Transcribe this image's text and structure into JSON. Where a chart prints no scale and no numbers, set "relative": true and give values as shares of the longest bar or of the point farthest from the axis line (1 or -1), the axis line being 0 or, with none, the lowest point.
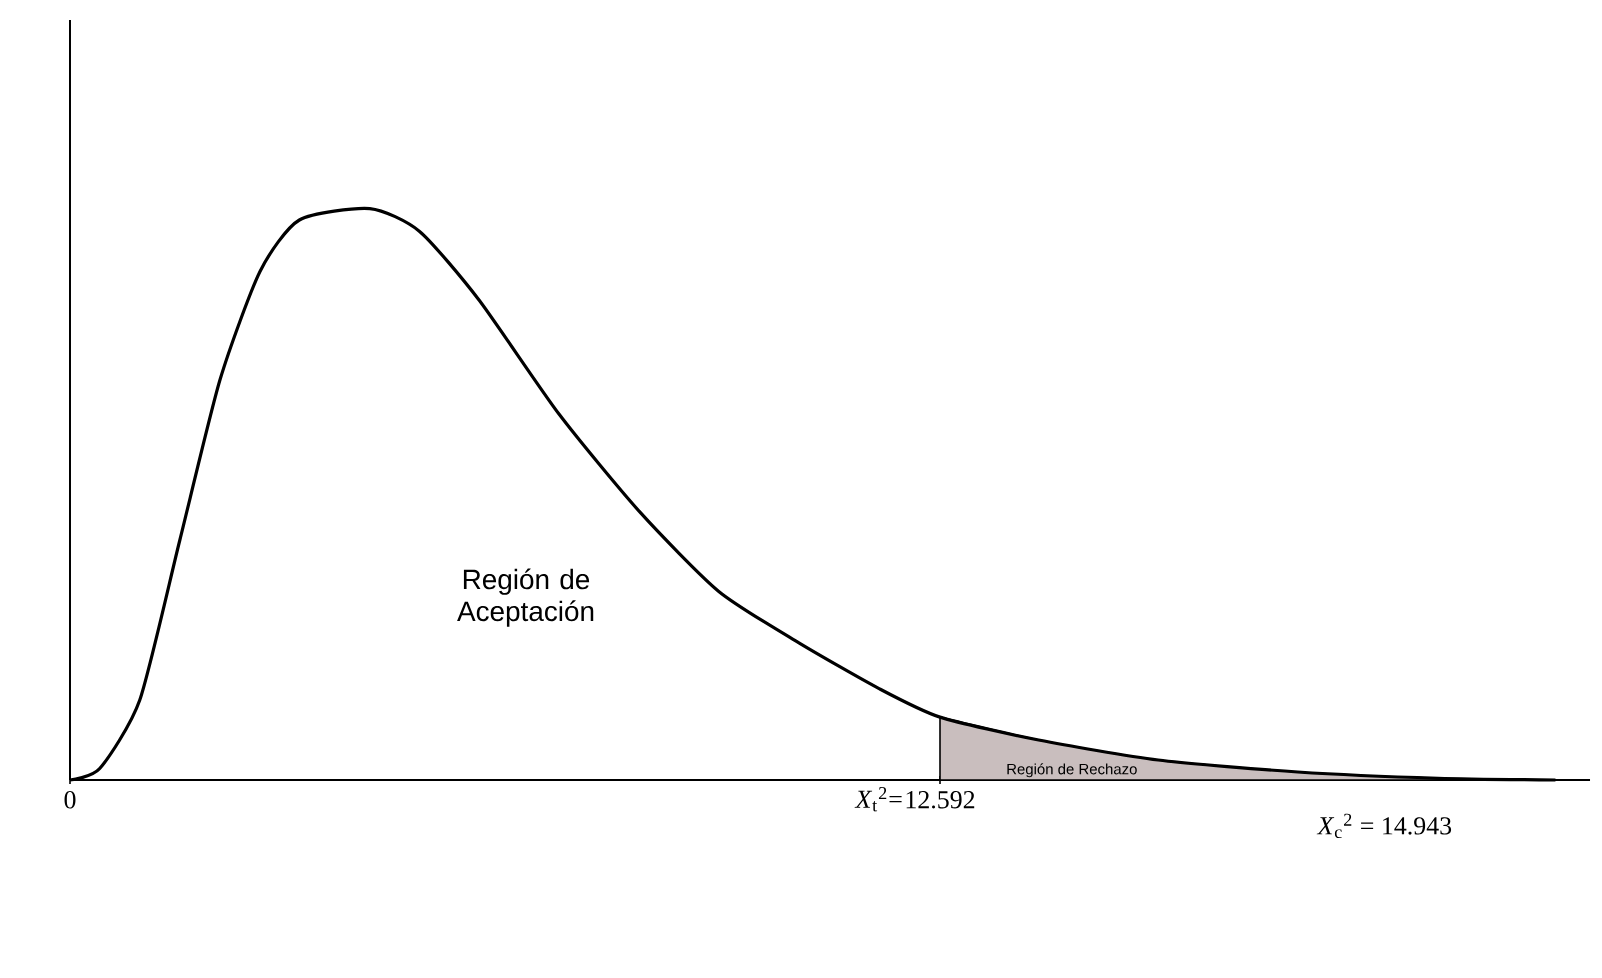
{
  "chart_data": {
    "type": "line",
    "relative": true,
    "xlim": [
      0,
      22
    ],
    "xticks": [
      0,
      12.592
    ],
    "tick_labels": "x",
    "series": [
      {
        "color": "#000000",
        "x": [
          0,
          0.43,
          1.01,
          1.59,
          2.17,
          2.75,
          3.32,
          4.34,
          5.06,
          5.92,
          7.08,
          8.24,
          9.39,
          10.55,
          11.71,
          12.592,
          14.02,
          15.75,
          17.77,
          19.8,
          21.5
        ],
        "values": [
          0,
          0.02,
          0.14,
          0.42,
          0.7,
          0.89,
          0.98,
          1,
          0.96,
          0.84,
          0.64,
          0.47,
          0.33,
          0.24,
          0.16,
          0.11,
          0.07,
          0.035,
          0.014,
          0.003,
          0
        ]
      },
      {
        "type": "area",
        "color": "#c9bebe",
        "x": [
          12.592,
          14.02,
          15.75,
          17.77,
          19.8,
          21.5
        ],
        "values": [
          0.11,
          0.07,
          0.035,
          0.014,
          0.003,
          0
        ]
      }
    ],
    "annotations": [
      "Región de Aceptación",
      {
        "text": "Región de Rechazo",
        "x": 14.5,
        "y": 0.017
      },
      "*X*$_{t}$$^{2}$=",
      "*X*$_{c}$$^{2}$ = 14.943"
    ]
  }
}
